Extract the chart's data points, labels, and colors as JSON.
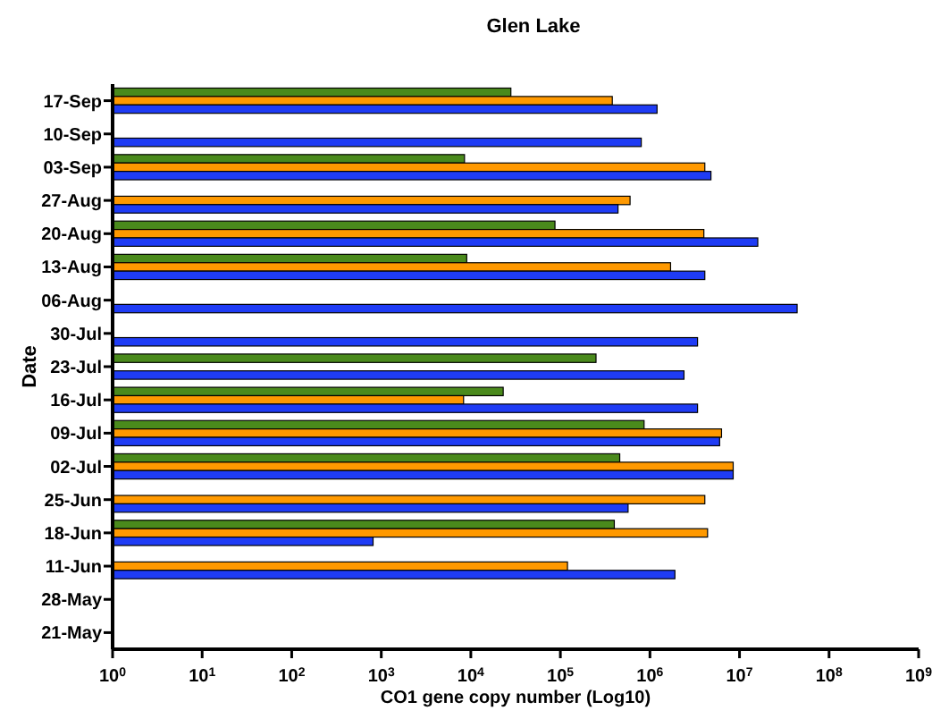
{
  "chart_data": {
    "type": "bar",
    "orientation": "horizontal",
    "log": "x",
    "title": "Glen Lake",
    "xlabel": "CO1 gene copy number (Log10)",
    "ylabel": "Date",
    "categories": [
      "17-Sep",
      "10-Sep",
      "03-Sep",
      "27-Aug",
      "20-Aug",
      "13-Aug",
      "06-Aug",
      "30-Jul",
      "23-Jul",
      "16-Jul",
      "09-Jul",
      "02-Jul",
      "25-Jun",
      "18-Jun",
      "11-Jun",
      "28-May",
      "21-May"
    ],
    "series": [
      {
        "color": "#4a8a1c",
        "values": [
          28000,
          null,
          8500,
          null,
          87000,
          9000,
          null,
          null,
          250000,
          23000,
          860000,
          460000,
          null,
          400000,
          null,
          null,
          null
        ]
      },
      {
        "color": "#ff9900",
        "values": [
          380000,
          null,
          4100000,
          600000,
          4000000,
          1700000,
          null,
          null,
          null,
          8300,
          6300000,
          8500000,
          4100000,
          4400000,
          120000,
          null,
          null
        ]
      },
      {
        "color": "#1f3cf5",
        "values": [
          1200000,
          800000,
          4800000,
          440000,
          16000000,
          4100000,
          44000000,
          3400000,
          2400000,
          3400000,
          6000000,
          8500000,
          570000,
          810,
          1900000,
          null,
          null
        ]
      }
    ],
    "xlim": [
      1,
      1000000000
    ],
    "xticks": [
      {
        "value": 1,
        "label": "10$^{0}$"
      },
      {
        "value": 10,
        "label": "10$^{1}$"
      },
      {
        "value": 100,
        "label": "10$^{2}$"
      },
      {
        "value": 1000,
        "label": "10$^{3}$"
      },
      {
        "value": 10000,
        "label": "10$^{4}$"
      },
      {
        "value": 100000,
        "label": "10$^{5}$"
      },
      {
        "value": 1000000,
        "label": "10$^{6}$"
      },
      {
        "value": 10000000,
        "label": "10$^{7}$"
      },
      {
        "value": 100000000,
        "label": "10$^{8}$"
      },
      {
        "value": 1000000000,
        "label": "10$^{9}$"
      }
    ]
  }
}
